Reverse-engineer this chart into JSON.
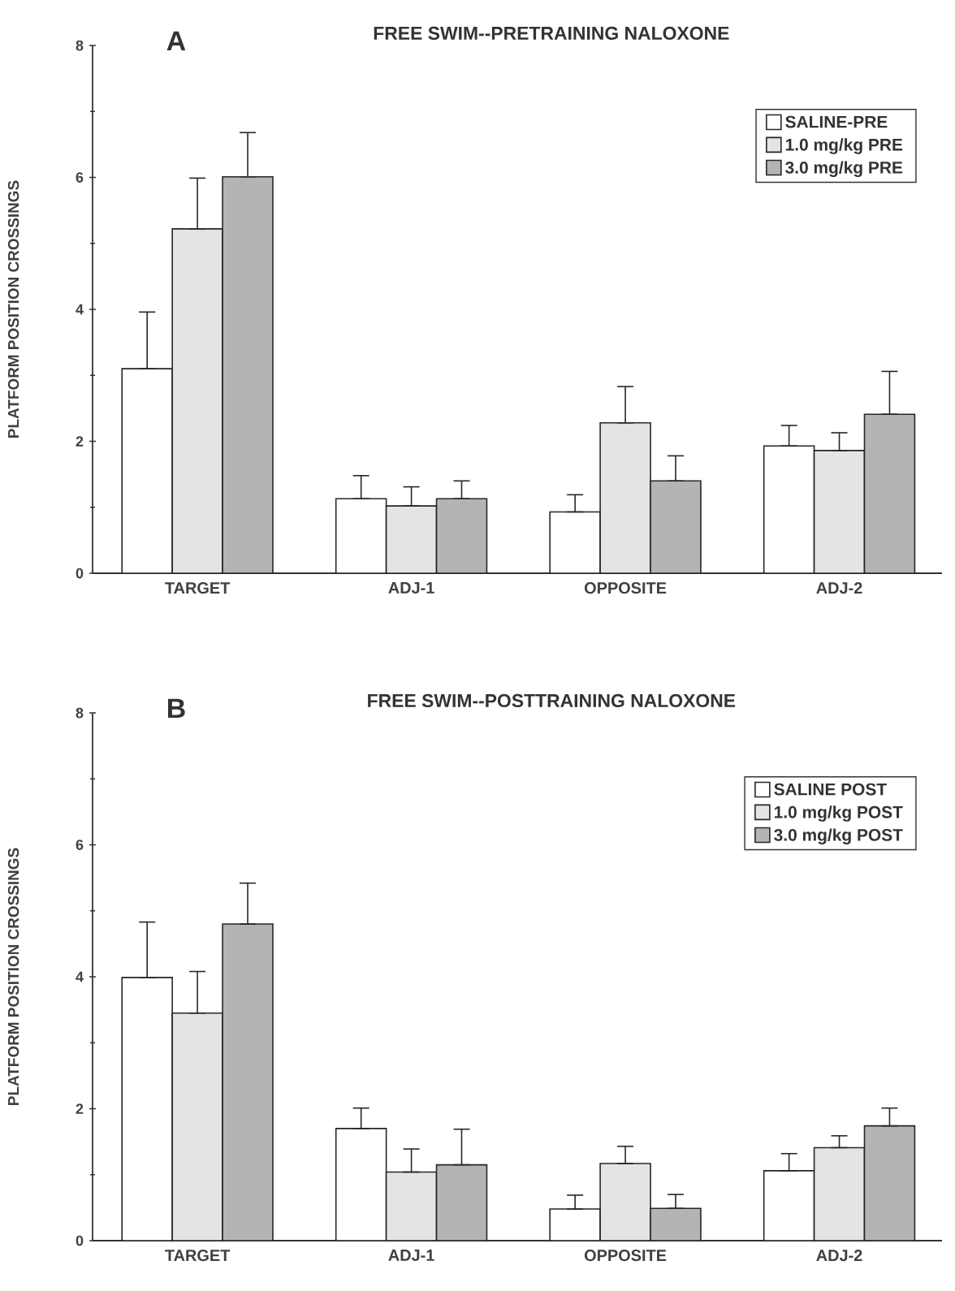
{
  "chart_data": [
    {
      "type": "bar",
      "title": "FREE SWIM--PRETRAINING NALOXONE",
      "ylabel": "PLATFORM POSITION CROSSINGS",
      "annotations": [
        "A"
      ],
      "categories": [
        "TARGET",
        "ADJ-1",
        "OPPOSITE",
        "ADJ-2"
      ],
      "ylim": [
        0,
        8
      ],
      "yticks": [
        0,
        2,
        4,
        6,
        8
      ],
      "legend": "top right",
      "series": [
        {
          "name": "SALINE-PRE",
          "color": "#ffffff",
          "values": [
            3.1,
            1.13,
            0.93,
            1.93
          ],
          "errors": [
            [
              3.1,
              3.96
            ],
            [
              1.13,
              1.48
            ],
            [
              0.93,
              1.19
            ],
            [
              1.93,
              2.24
            ]
          ]
        },
        {
          "name": "1.0 mg/kg PRE",
          "color": "#e4e4e4",
          "values": [
            5.22,
            1.02,
            2.28,
            1.86
          ],
          "errors": [
            [
              5.22,
              5.99
            ],
            [
              1.02,
              1.31
            ],
            [
              2.28,
              2.83
            ],
            [
              1.86,
              2.13
            ]
          ]
        },
        {
          "name": "3.0 mg/kg PRE",
          "color": "#b4b4b4",
          "values": [
            6.01,
            1.13,
            1.4,
            2.41
          ],
          "errors": [
            [
              6.01,
              6.68
            ],
            [
              1.13,
              1.4
            ],
            [
              1.4,
              1.78
            ],
            [
              2.41,
              3.06
            ]
          ]
        }
      ]
    },
    {
      "type": "bar",
      "title": "FREE SWIM--POSTTRAINING NALOXONE",
      "ylabel": "PLATFORM POSITION CROSSINGS",
      "annotations": [
        "B"
      ],
      "categories": [
        "TARGET",
        "ADJ-1",
        "OPPOSITE",
        "ADJ-2"
      ],
      "ylim": [
        0,
        8
      ],
      "yticks": [
        0,
        2,
        4,
        6,
        8
      ],
      "legend": "top right",
      "series": [
        {
          "name": "SALINE POST",
          "color": "#ffffff",
          "values": [
            3.99,
            1.7,
            0.48,
            1.06
          ],
          "errors": [
            [
              3.99,
              4.83
            ],
            [
              1.7,
              2.01
            ],
            [
              0.48,
              0.69
            ],
            [
              1.06,
              1.32
            ]
          ]
        },
        {
          "name": "1.0 mg/kg POST",
          "color": "#e4e4e4",
          "values": [
            3.45,
            1.04,
            1.17,
            1.41
          ],
          "errors": [
            [
              3.45,
              4.08
            ],
            [
              1.04,
              1.39
            ],
            [
              1.17,
              1.43
            ],
            [
              1.41,
              1.59
            ]
          ]
        },
        {
          "name": "3.0 mg/kg POST",
          "color": "#b4b4b4",
          "values": [
            4.8,
            1.15,
            0.49,
            1.74
          ],
          "errors": [
            [
              4.8,
              5.42
            ],
            [
              1.15,
              1.69
            ],
            [
              0.49,
              0.7
            ],
            [
              1.74,
              2.01
            ]
          ]
        }
      ]
    }
  ]
}
